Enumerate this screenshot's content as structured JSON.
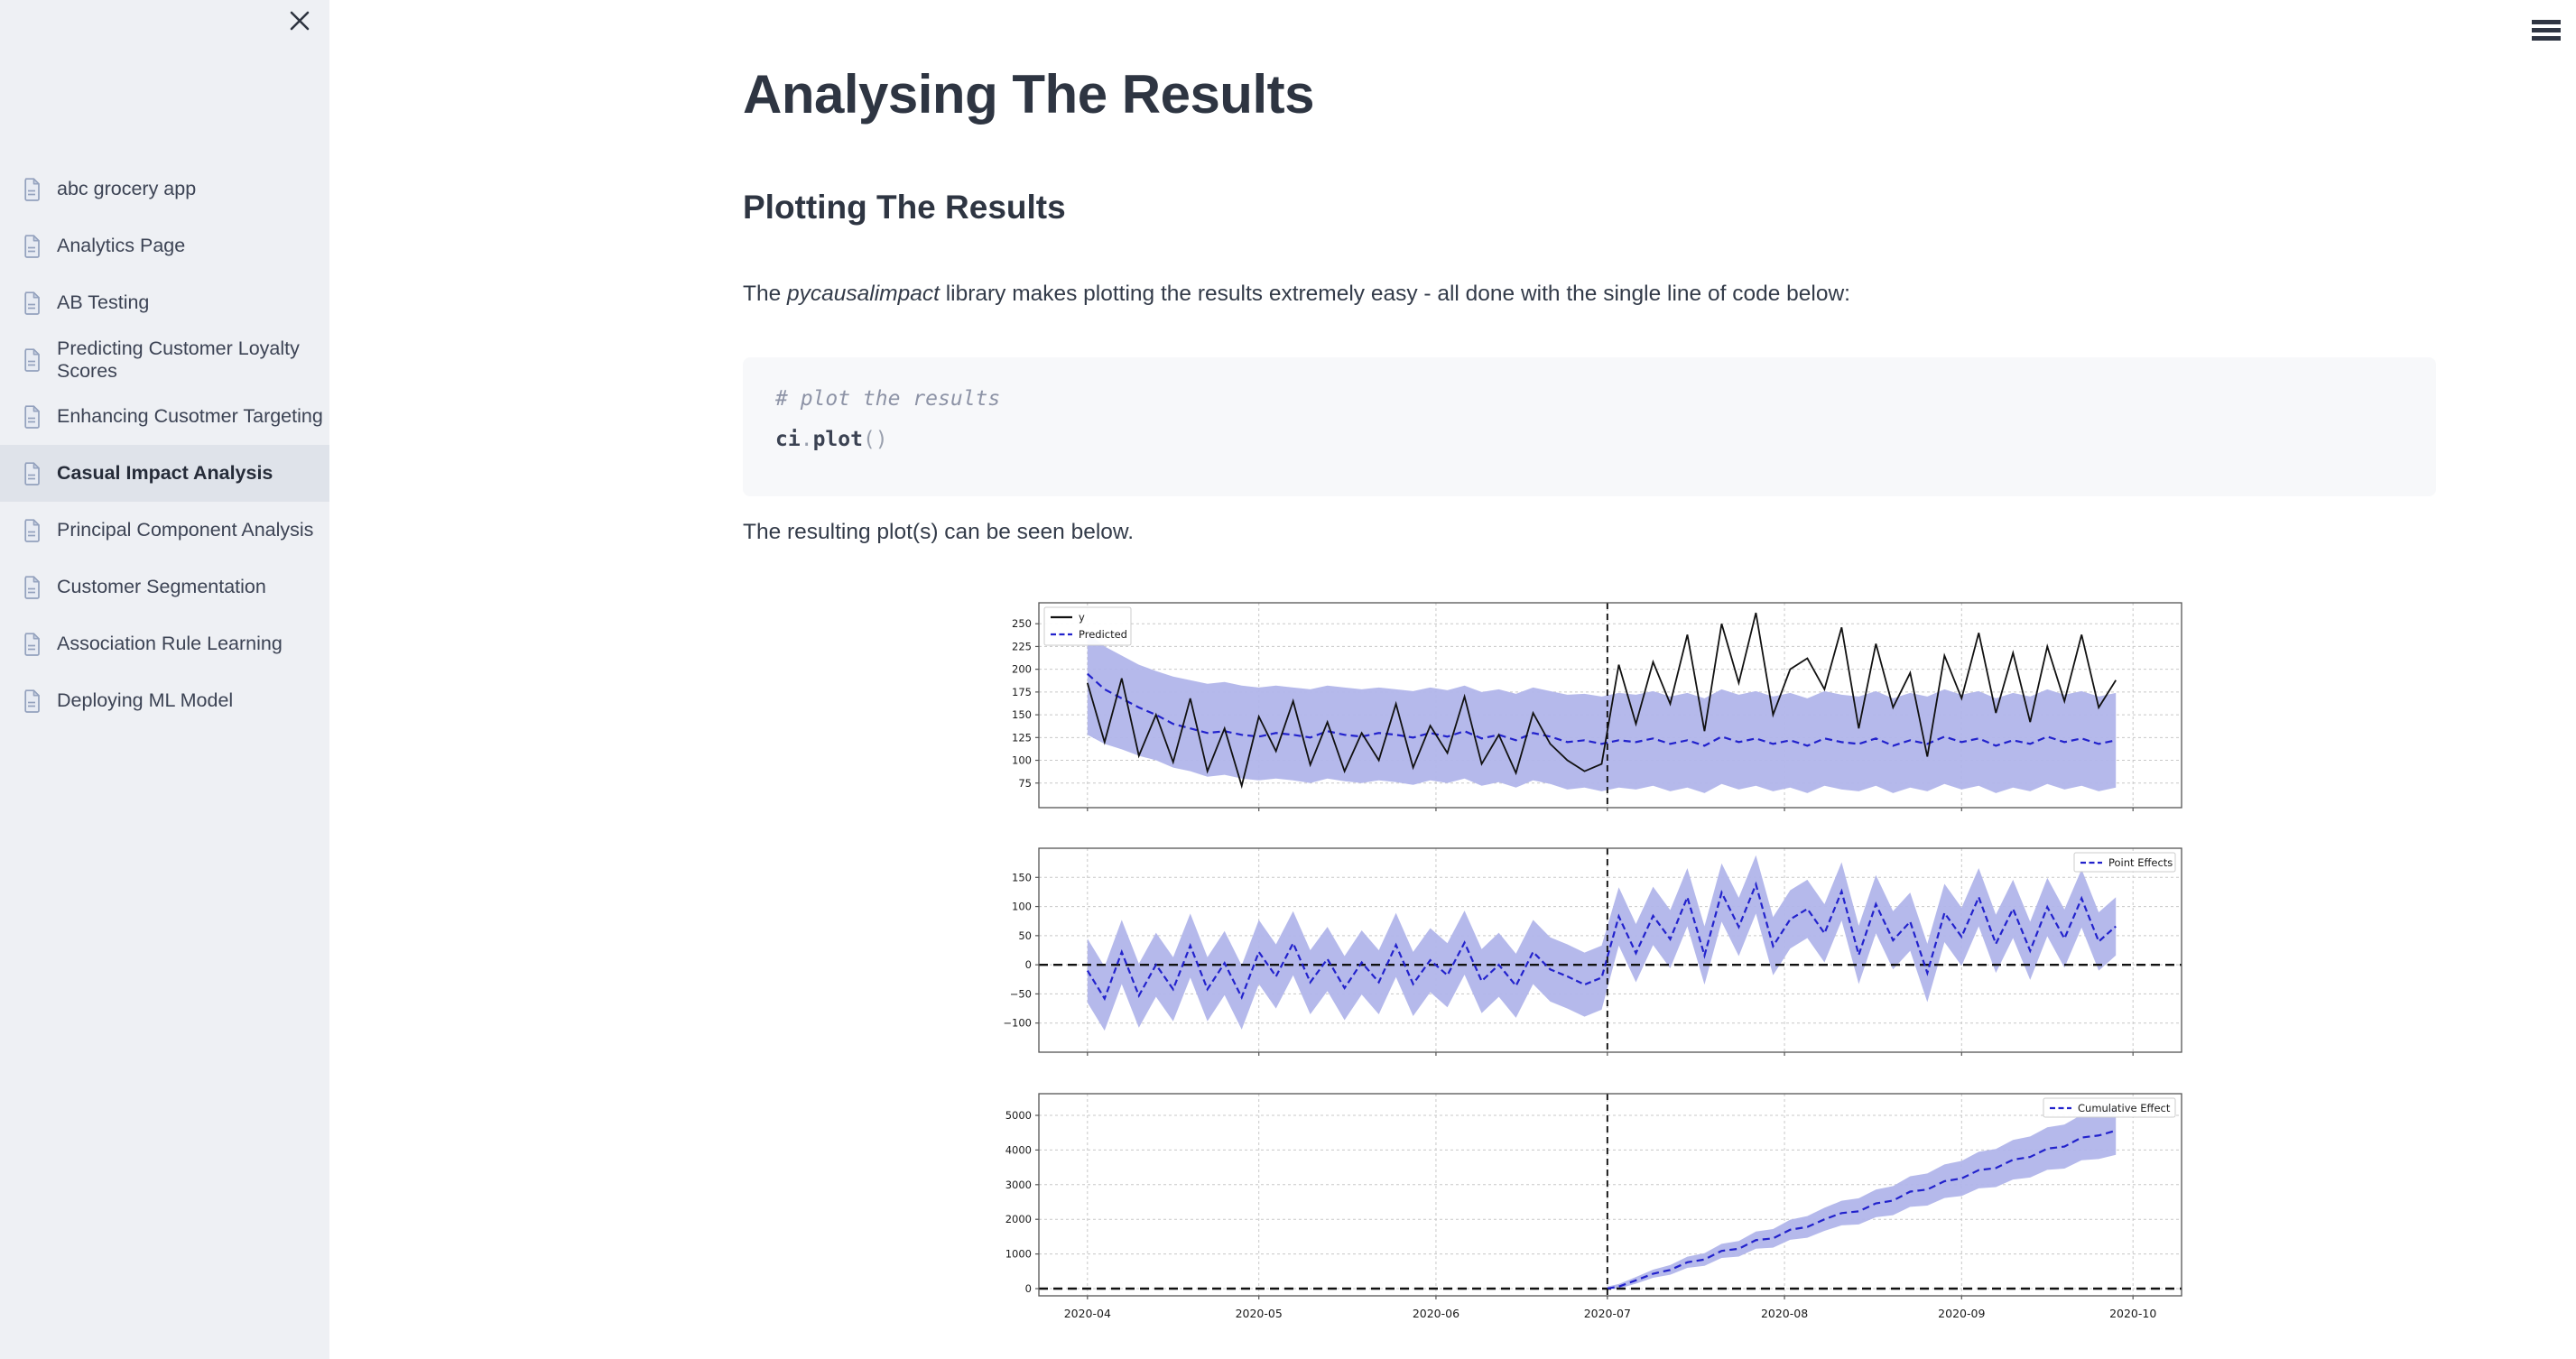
{
  "sidebar": {
    "close_icon_glyph": "✕",
    "items": [
      {
        "label": "abc grocery app",
        "active": false
      },
      {
        "label": "Analytics Page",
        "active": false
      },
      {
        "label": "AB Testing",
        "active": false
      },
      {
        "label": "Predicting Customer Loyalty Scores",
        "active": false
      },
      {
        "label": "Enhancing Cusotmer Targeting",
        "active": false
      },
      {
        "label": "Casual Impact Analysis",
        "active": true
      },
      {
        "label": "Principal Component Analysis",
        "active": false
      },
      {
        "label": "Customer Segmentation",
        "active": false
      },
      {
        "label": "Association Rule Learning",
        "active": false
      },
      {
        "label": "Deploying ML Model",
        "active": false
      }
    ]
  },
  "topbar": {
    "menu_icon_glyph": "≡"
  },
  "main": {
    "title": "Analysing The Results",
    "section_heading": "Plotting The Results",
    "intro_pre": "The ",
    "intro_italic": "pycausalimpact",
    "intro_post": " library makes plotting the results extremely easy - all done with the single line of code below:",
    "code": {
      "comment": "# plot the results",
      "obj": "ci",
      "dot": ".",
      "fn": "plot",
      "parens": "()"
    },
    "caption": "The resulting plot(s) can be seen below."
  },
  "colors": {
    "sidebar_bg": "#eef0f4",
    "active_item_bg": "#dfe3ea",
    "heading_text": "#2e3542",
    "code_bg": "#f7f8fa"
  },
  "chart_data": {
    "type": "line",
    "x_unit": "days since 2020-04-01",
    "month_ticks": [
      {
        "label": "2020-04",
        "day": 0
      },
      {
        "label": "2020-05",
        "day": 30
      },
      {
        "label": "2020-06",
        "day": 61
      },
      {
        "label": "2020-07",
        "day": 91
      },
      {
        "label": "2020-08",
        "day": 122
      },
      {
        "label": "2020-09",
        "day": 153
      },
      {
        "label": "2020-10",
        "day": 183
      }
    ],
    "intervention_day": 91,
    "band_color": "#b1b5ea",
    "blue": "#2222cc",
    "black": "#111111",
    "days": [
      0,
      3,
      6,
      9,
      12,
      15,
      18,
      21,
      24,
      27,
      30,
      33,
      36,
      39,
      42,
      45,
      48,
      51,
      54,
      57,
      60,
      63,
      66,
      69,
      72,
      75,
      78,
      81,
      84,
      87,
      90,
      93,
      96,
      99,
      102,
      105,
      108,
      111,
      114,
      117,
      120,
      123,
      126,
      129,
      132,
      135,
      138,
      141,
      144,
      147,
      150,
      153,
      156,
      159,
      162,
      165,
      168,
      171,
      174,
      177,
      180
    ],
    "subplots": [
      {
        "name": "original",
        "ylim": [
          48,
          273
        ],
        "yticks": [
          75,
          100,
          125,
          150,
          175,
          200,
          225,
          250
        ],
        "legend": {
          "position": "top-left",
          "entries": [
            "y",
            "Predicted"
          ]
        },
        "y": [
          185,
          120,
          190,
          105,
          150,
          98,
          168,
          88,
          135,
          72,
          148,
          110,
          165,
          95,
          142,
          88,
          130,
          100,
          162,
          92,
          138,
          108,
          170,
          96,
          128,
          86,
          152,
          118,
          100,
          88,
          96,
          205,
          140,
          208,
          162,
          238,
          132,
          250,
          185,
          262,
          150,
          200,
          212,
          178,
          246,
          135,
          228,
          158,
          196,
          104,
          215,
          168,
          240,
          152,
          218,
          142,
          225,
          165,
          238,
          158,
          188
        ],
        "predicted": [
          195,
          178,
          168,
          158,
          150,
          140,
          135,
          130,
          132,
          128,
          126,
          130,
          128,
          125,
          132,
          128,
          126,
          130,
          128,
          125,
          130,
          126,
          132,
          124,
          128,
          122,
          130,
          126,
          120,
          122,
          118,
          122,
          120,
          124,
          118,
          122,
          116,
          126,
          120,
          124,
          118,
          122,
          116,
          124,
          120,
          118,
          124,
          116,
          122,
          118,
          126,
          120,
          124,
          116,
          122,
          118,
          126,
          120,
          124,
          118,
          122
        ],
        "band_upper": [
          240,
          225,
          215,
          205,
          198,
          192,
          188,
          184,
          186,
          182,
          180,
          182,
          180,
          178,
          182,
          180,
          178,
          180,
          178,
          176,
          180,
          177,
          182,
          175,
          178,
          173,
          180,
          176,
          172,
          173,
          170,
          174,
          172,
          176,
          170,
          174,
          168,
          178,
          172,
          176,
          170,
          174,
          168,
          176,
          172,
          170,
          176,
          168,
          174,
          170,
          178,
          172,
          176,
          168,
          174,
          170,
          178,
          172,
          176,
          170,
          174
        ],
        "band_lower": [
          128,
          118,
          112,
          105,
          100,
          92,
          88,
          82,
          84,
          80,
          78,
          80,
          78,
          75,
          80,
          77,
          75,
          78,
          76,
          73,
          78,
          75,
          80,
          72,
          76,
          70,
          78,
          74,
          68,
          70,
          66,
          70,
          68,
          72,
          66,
          70,
          64,
          74,
          68,
          72,
          66,
          70,
          64,
          72,
          68,
          66,
          72,
          64,
          70,
          66,
          74,
          68,
          72,
          64,
          70,
          66,
          74,
          68,
          72,
          66,
          70
        ]
      },
      {
        "name": "pointwise",
        "ylim": [
          -150,
          200
        ],
        "yticks": [
          -100,
          -50,
          0,
          50,
          100,
          150
        ],
        "legend": {
          "position": "top-right",
          "entries": [
            "Point Effects"
          ]
        },
        "zero_line": true,
        "point_effects": [
          -10,
          -58,
          22,
          -53,
          0,
          -42,
          33,
          -42,
          3,
          -56,
          22,
          -20,
          37,
          -30,
          10,
          -40,
          4,
          -30,
          34,
          -33,
          8,
          -18,
          38,
          -28,
          0,
          -36,
          22,
          -8,
          -20,
          -34,
          -22,
          83,
          20,
          84,
          44,
          116,
          16,
          124,
          65,
          138,
          32,
          78,
          96,
          54,
          126,
          17,
          104,
          42,
          74,
          -14,
          89,
          48,
          116,
          36,
          96,
          24,
          99,
          45,
          114,
          40,
          66
        ],
        "band_halfwidth_pre": 55,
        "band_halfwidth_post": 50
      },
      {
        "name": "cumulative",
        "ylim": [
          -208,
          5625
        ],
        "yticks": [
          0,
          1000,
          2000,
          3000,
          4000,
          5000
        ],
        "legend": {
          "position": "top-right",
          "entries": [
            "Cumulative Effect"
          ]
        },
        "zero_line": true,
        "cum_days": [
          91,
          93,
          96,
          99,
          102,
          105,
          108,
          111,
          114,
          117,
          120,
          123,
          126,
          129,
          132,
          135,
          138,
          141,
          144,
          147,
          150,
          153,
          156,
          159,
          162,
          165,
          168,
          171,
          174,
          177,
          180
        ],
        "cumulative": [
          0,
          60,
          240,
          430,
          540,
          760,
          840,
          1090,
          1150,
          1400,
          1450,
          1700,
          1780,
          2000,
          2180,
          2230,
          2460,
          2540,
          2800,
          2860,
          3100,
          3180,
          3420,
          3480,
          3720,
          3800,
          4040,
          4100,
          4360,
          4420,
          4560
        ],
        "band_halfwidth_start": 60,
        "band_halfwidth_end": 700
      }
    ]
  }
}
